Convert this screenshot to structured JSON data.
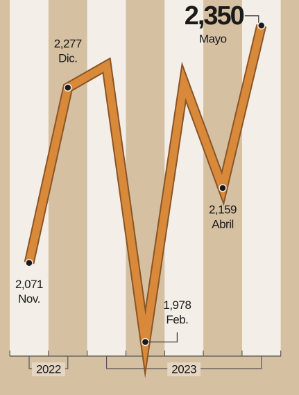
{
  "chart_data": {
    "type": "line",
    "categories": [
      "Nov.",
      "Dic.",
      null,
      "Feb.",
      null,
      "Abril",
      "Mayo"
    ],
    "values": [
      2071,
      2277,
      2303,
      1978,
      2283,
      2159,
      2350
    ],
    "value_labels": [
      "2,071",
      "2,277",
      null,
      "1,978",
      null,
      "2,159",
      "2,350"
    ],
    "groups": [
      "2022",
      "2023"
    ],
    "color": "#d9893a",
    "ylim": [
      1950,
      2380
    ]
  }
}
